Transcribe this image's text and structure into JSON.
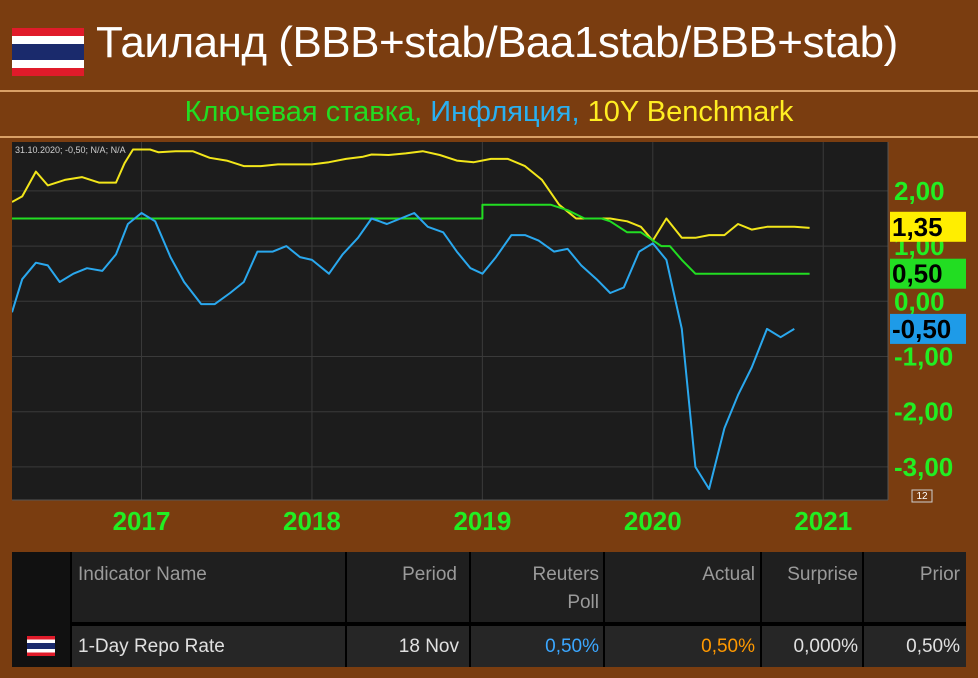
{
  "header": {
    "title": "Таиланд (BBB+stab/Baa1stab/BBB+stab)",
    "subtitle_parts": [
      {
        "text": "Ключевая ставка, ",
        "color": "#22dd22"
      },
      {
        "text": "Инфляция, ",
        "color": "#2ab0f0"
      },
      {
        "text": "10Y Benchmark",
        "color": "#ffee22"
      }
    ]
  },
  "chart_data": {
    "type": "line",
    "tooltip": "31.10.2020; -0,50; N/A; N/A",
    "x_ticks": [
      {
        "label": "2017",
        "t": 2017.0
      },
      {
        "label": "2018",
        "t": 2018.0
      },
      {
        "label": "2019",
        "t": 2019.0
      },
      {
        "label": "2020",
        "t": 2020.0
      },
      {
        "label": "2021",
        "t": 2021.0
      }
    ],
    "y_ticks": [
      {
        "label": "2,00",
        "v": 2.0
      },
      {
        "label": "1,00",
        "v": 1.0
      },
      {
        "label": "0,00",
        "v": 0.0
      },
      {
        "label": "-1,00",
        "v": -1.0
      },
      {
        "label": "-2,00",
        "v": -2.0
      },
      {
        "label": "-3,00",
        "v": -3.0
      }
    ],
    "xlim": [
      2016.24,
      2021.38
    ],
    "ylim": [
      -3.6,
      2.85
    ],
    "grid": true,
    "badges": [
      {
        "label": "1,35",
        "value": 1.35,
        "bg": "#ffee00",
        "fg": "#000000"
      },
      {
        "label": "0,50",
        "value": 0.5,
        "bg": "#22dd22",
        "fg": "#000000"
      },
      {
        "label": "-0,50",
        "value": -0.5,
        "bg": "#1e9be8",
        "fg": "#000000"
      }
    ],
    "corner_label": "12",
    "series": [
      {
        "color": "#f2e61a",
        "x": [
          2016.24,
          2016.3,
          2016.38,
          2016.45,
          2016.55,
          2016.65,
          2016.75,
          2016.85,
          2016.9,
          2016.95,
          2017.05,
          2017.1,
          2017.2,
          2017.3,
          2017.4,
          2017.5,
          2017.6,
          2017.7,
          2017.8,
          2017.9,
          2018.0,
          2018.1,
          2018.2,
          2018.3,
          2018.35,
          2018.45,
          2018.55,
          2018.65,
          2018.75,
          2018.85,
          2018.95,
          2019.05,
          2019.15,
          2019.25,
          2019.35,
          2019.45,
          2019.55,
          2019.65,
          2019.75,
          2019.85,
          2019.93,
          2020.0,
          2020.08,
          2020.17,
          2020.25,
          2020.33,
          2020.42,
          2020.5,
          2020.58,
          2020.67,
          2020.75,
          2020.83,
          2020.92
        ],
        "y": [
          1.8,
          1.9,
          2.35,
          2.1,
          2.2,
          2.25,
          2.15,
          2.15,
          2.5,
          2.75,
          2.75,
          2.7,
          2.72,
          2.72,
          2.6,
          2.55,
          2.45,
          2.45,
          2.48,
          2.48,
          2.48,
          2.52,
          2.58,
          2.62,
          2.66,
          2.65,
          2.68,
          2.72,
          2.65,
          2.55,
          2.52,
          2.58,
          2.58,
          2.45,
          2.2,
          1.75,
          1.5,
          1.5,
          1.5,
          1.45,
          1.35,
          1.1,
          1.5,
          1.15,
          1.15,
          1.2,
          1.2,
          1.4,
          1.3,
          1.35,
          1.35,
          1.35,
          1.33
        ]
      },
      {
        "color": "#22dd22",
        "x": [
          2016.24,
          2019.0,
          2019.0,
          2019.4,
          2019.5,
          2019.6,
          2019.7,
          2019.75,
          2019.85,
          2019.93,
          2020.05,
          2020.1,
          2020.17,
          2020.25,
          2020.33,
          2020.42,
          2020.5,
          2020.6,
          2020.7,
          2020.8,
          2020.92
        ],
        "y": [
          1.5,
          1.5,
          1.75,
          1.75,
          1.65,
          1.5,
          1.5,
          1.45,
          1.25,
          1.25,
          1.0,
          1.0,
          0.75,
          0.5,
          0.5,
          0.5,
          0.5,
          0.5,
          0.5,
          0.5,
          0.5
        ]
      },
      {
        "color": "#2aa8ee",
        "x": [
          2016.24,
          2016.3,
          2016.38,
          2016.45,
          2016.52,
          2016.6,
          2016.68,
          2016.77,
          2016.85,
          2016.92,
          2017.0,
          2017.08,
          2017.17,
          2017.25,
          2017.35,
          2017.43,
          2017.52,
          2017.6,
          2017.68,
          2017.77,
          2017.85,
          2017.93,
          2018.0,
          2018.1,
          2018.18,
          2018.27,
          2018.35,
          2018.44,
          2018.52,
          2018.6,
          2018.68,
          2018.77,
          2018.85,
          2018.93,
          2019.0,
          2019.08,
          2019.17,
          2019.25,
          2019.33,
          2019.42,
          2019.5,
          2019.58,
          2019.67,
          2019.75,
          2019.83,
          2019.92,
          2020.0,
          2020.08,
          2020.17,
          2020.25,
          2020.33,
          2020.42,
          2020.5,
          2020.58,
          2020.67,
          2020.75,
          2020.83
        ],
        "y": [
          -0.2,
          0.4,
          0.7,
          0.65,
          0.35,
          0.5,
          0.6,
          0.55,
          0.85,
          1.4,
          1.6,
          1.45,
          0.8,
          0.35,
          -0.05,
          -0.05,
          0.15,
          0.35,
          0.9,
          0.9,
          1.0,
          0.8,
          0.75,
          0.5,
          0.85,
          1.15,
          1.5,
          1.4,
          1.5,
          1.6,
          1.35,
          1.25,
          0.9,
          0.6,
          0.5,
          0.8,
          1.2,
          1.2,
          1.1,
          0.9,
          0.95,
          0.65,
          0.4,
          0.15,
          0.25,
          0.9,
          1.05,
          0.75,
          -0.5,
          -3.0,
          -3.4,
          -2.3,
          -1.7,
          -1.2,
          -0.5,
          -0.65,
          -0.5
        ]
      }
    ]
  },
  "table": {
    "headers": [
      {
        "label": "Indicator Name"
      },
      {
        "label": "Period"
      },
      {
        "label": "Reuters"
      },
      {
        "label": "Poll"
      },
      {
        "label": "Actual"
      },
      {
        "label": "Surprise"
      },
      {
        "label": "Prior"
      }
    ],
    "row": {
      "indicator": "1-Day Repo Rate",
      "period": "18 Nov",
      "reuters_poll": "0,50%",
      "actual": "0,50%",
      "surprise": "0,000%",
      "prior": "0,50%"
    },
    "colors": {
      "poll": "#3ba7ff",
      "actual": "#ff9900"
    }
  }
}
